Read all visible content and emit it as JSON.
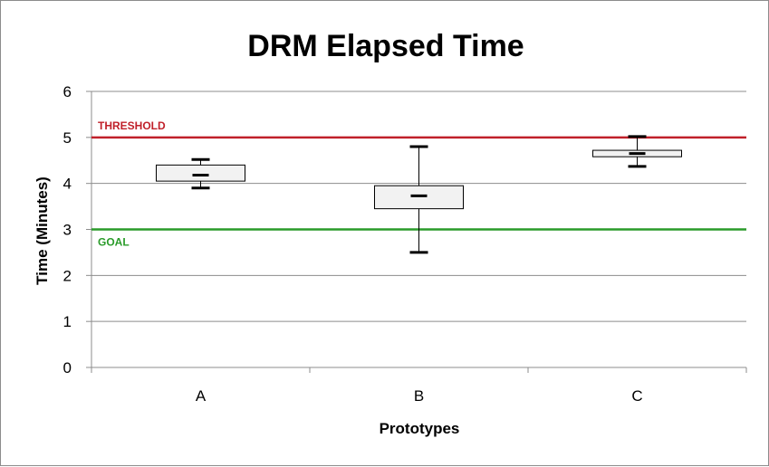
{
  "chart_data": {
    "type": "box",
    "title": "DRM Elapsed Time",
    "xlabel": "Prototypes",
    "ylabel": "Time (Minutes)",
    "ylim": [
      0,
      6
    ],
    "yticks": [
      "0",
      "1",
      "2",
      "3",
      "4",
      "5",
      "6"
    ],
    "grid": true,
    "categories": [
      "A",
      "B",
      "C"
    ],
    "boxes": [
      {
        "category": "A",
        "min": 3.9,
        "q1": 4.05,
        "median": 4.18,
        "q3": 4.4,
        "max": 4.52
      },
      {
        "category": "B",
        "min": 2.5,
        "q1": 3.45,
        "median": 3.73,
        "q3": 3.95,
        "max": 4.8
      },
      {
        "category": "C",
        "min": 4.37,
        "q1": 4.58,
        "median": 4.65,
        "q3": 4.72,
        "max": 5.02
      }
    ],
    "reference_lines": [
      {
        "label": "THRESHOLD",
        "value": 5,
        "color": "#c0202a"
      },
      {
        "label": "GOAL",
        "value": 3,
        "color": "#2a9b2a"
      }
    ],
    "colors": {
      "box_fill": "#f2f2f2",
      "box_stroke": "#000000",
      "grid": "#8c8c8c"
    }
  }
}
